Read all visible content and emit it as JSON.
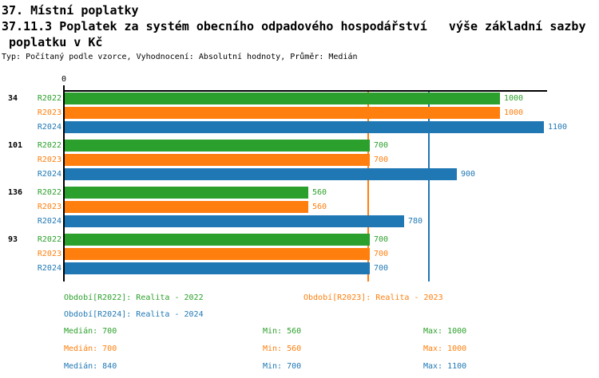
{
  "header": {
    "title": "37. Místní poplatky",
    "subtitle": "37.11.3 Poplatek za systém obecního odpadového hospodářství   výše základní sazby",
    "subtitle2": " poplatku v Kč",
    "meta": "Typ: Počítaný podle vzorce, Vyhodnocení: Absolutní hodnoty, Průměr: Medián"
  },
  "palette": {
    "green": "#2ca02c",
    "orange": "#ff7f0e",
    "blue": "#1f77b4",
    "axis": "#000000"
  },
  "chart_data": {
    "type": "bar",
    "orientation": "horizontal",
    "title": "",
    "x_axis": {
      "zero_label": "0",
      "min": 0,
      "max": 1110,
      "position": "top"
    },
    "categories": [
      "34",
      "101",
      "136",
      "93"
    ],
    "series": [
      {
        "name": "R2022",
        "color_key": "green",
        "values": [
          1000,
          700,
          560,
          700
        ]
      },
      {
        "name": "R2023",
        "color_key": "orange",
        "values": [
          1000,
          700,
          560,
          700
        ]
      },
      {
        "name": "R2024",
        "color_key": "blue",
        "values": [
          1100,
          900,
          780,
          700
        ]
      }
    ],
    "median_lines": [
      {
        "value": 700,
        "color_key": "green"
      },
      {
        "value": 700,
        "color_key": "orange"
      },
      {
        "value": 840,
        "color_key": "blue"
      }
    ],
    "grid": false,
    "legend_position": "bottom"
  },
  "legend": {
    "items": [
      {
        "label": "Období[R2022]: Realita - 2022",
        "color_key": "green"
      },
      {
        "label": "Období[R2023]: Realita - 2023",
        "color_key": "orange"
      },
      {
        "label": "Období[R2024]: Realita - 2024",
        "color_key": "blue"
      }
    ]
  },
  "stats": {
    "rows": [
      {
        "color_key": "green",
        "median": "Medián: 700",
        "min": "Min: 560",
        "max": "Max: 1000"
      },
      {
        "color_key": "orange",
        "median": "Medián: 700",
        "min": "Min: 560",
        "max": "Max: 1000"
      },
      {
        "color_key": "blue",
        "median": "Medián: 840",
        "min": "Min: 700",
        "max": "Max: 1100"
      }
    ]
  }
}
